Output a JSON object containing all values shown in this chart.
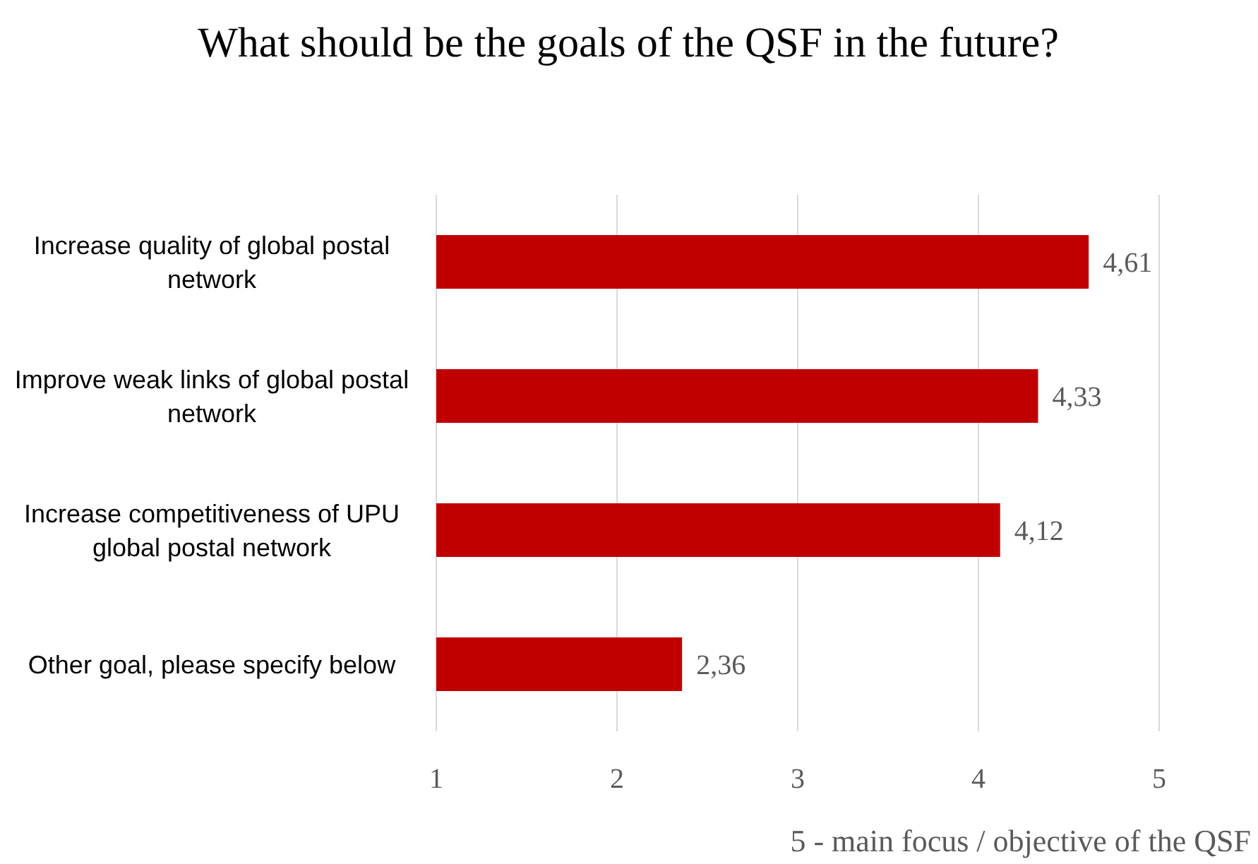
{
  "chart_data": {
    "type": "bar",
    "orientation": "horizontal",
    "title": "What should be the goals of the QSF in the future?",
    "xlabel": "5 - main focus / objective of the QSF",
    "categories": [
      "Increase quality of global postal network",
      "Improve weak links of global postal network",
      "Increase competitiveness of UPU global postal network",
      "Other goal, please specify below"
    ],
    "values": [
      4.61,
      4.33,
      4.12,
      2.36
    ],
    "value_labels": [
      "4,61",
      "4,33",
      "4,12",
      "2,36"
    ],
    "color": "#c00000",
    "xlim": [
      1,
      5
    ],
    "xticks": [
      1,
      2,
      3,
      4,
      5
    ],
    "grid": "x"
  }
}
